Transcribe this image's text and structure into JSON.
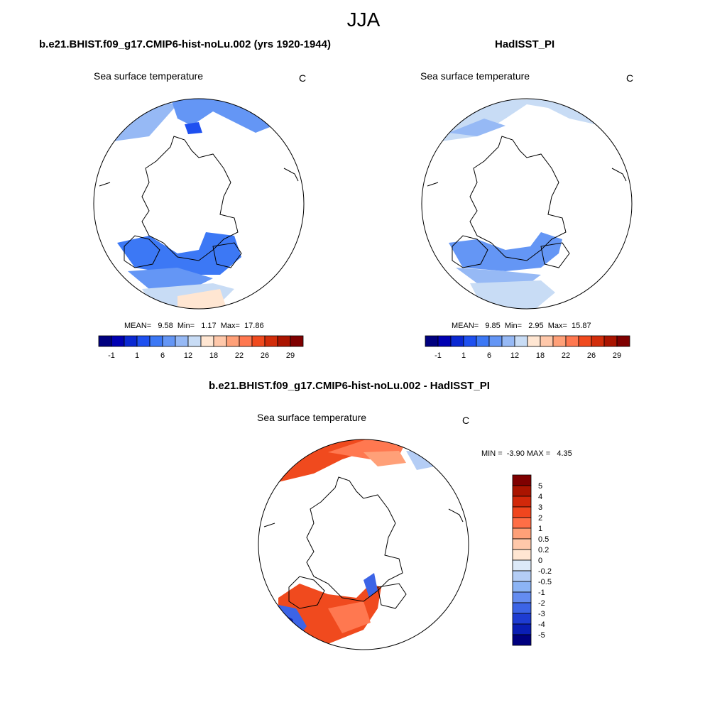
{
  "figure": {
    "title": "JJA"
  },
  "panels": {
    "model": {
      "title": "b.e21.BHIST.f09_g17.CMIP6-hist-noLu.002 (yrs 1920-1944)",
      "variable": "Sea surface temperature",
      "units": "C",
      "stats": "MEAN=   9.58  Min=   1.17  Max=  17.86"
    },
    "obs": {
      "title": "HadISST_PI",
      "variable": "Sea surface temperature",
      "units": "C",
      "stats": "MEAN=   9.85  Min=   2.95  Max=  15.87"
    },
    "diff": {
      "title": "b.e21.BHIST.f09_g17.CMIP6-hist-noLu.002 - HadISST_PI",
      "variable": "Sea surface temperature",
      "units": "C",
      "stats": "MIN =  -3.90 MAX =   4.35"
    }
  },
  "colorbar_abs": {
    "colors": [
      "#00007f",
      "#0000b2",
      "#0a28d2",
      "#1e50f0",
      "#3c78f5",
      "#6496f5",
      "#96b9f5",
      "#c8dcf5",
      "#ffe6d2",
      "#ffc8aa",
      "#ffa078",
      "#ff7850",
      "#f04a1e",
      "#d22d0a",
      "#aa1400",
      "#7f0000"
    ],
    "labels": [
      "-1",
      "1",
      "6",
      "12",
      "18",
      "22",
      "26",
      "29"
    ]
  },
  "colorbar_diff": {
    "colors": [
      "#7f0000",
      "#aa1400",
      "#d2280a",
      "#f0461e",
      "#ff6e46",
      "#ffa078",
      "#ffc8aa",
      "#ffe6d2",
      "#dce9f8",
      "#b4cdf5",
      "#8cb4f5",
      "#648cf0",
      "#3c64e6",
      "#1e3cd2",
      "#0a1eb4",
      "#00007f"
    ],
    "labels": [
      "5",
      "4",
      "3",
      "2",
      "1",
      "0.5",
      "0.2",
      "0",
      "-0.2",
      "-0.5",
      "-1",
      "-2",
      "-3",
      "-4",
      "-5"
    ]
  },
  "map_colors": {
    "model_pacific": "#6496f5",
    "model_pacific_pale": "#96b9f5",
    "model_deep": "#1e50f0",
    "model_atlantic": "#3c78f5",
    "model_atlantic_mid": "#6496f5",
    "model_atlantic_pale": "#c8dcf5",
    "model_warm": "#ffe6d2",
    "obs_pacific": "#c8dcf5",
    "obs_pacific_mid": "#96b9f5",
    "obs_atlantic": "#6496f5",
    "obs_atlantic_mid": "#96b9f5",
    "obs_atlantic_pale": "#c8dcf5",
    "diff_warm": "#f04a1e",
    "diff_warm_mid": "#ff7850",
    "diff_warm_pale": "#ffa078",
    "diff_cool": "#3c64e6",
    "diff_cool_dark": "#0a1eb4",
    "diff_cool_pale": "#b4cdf5"
  }
}
